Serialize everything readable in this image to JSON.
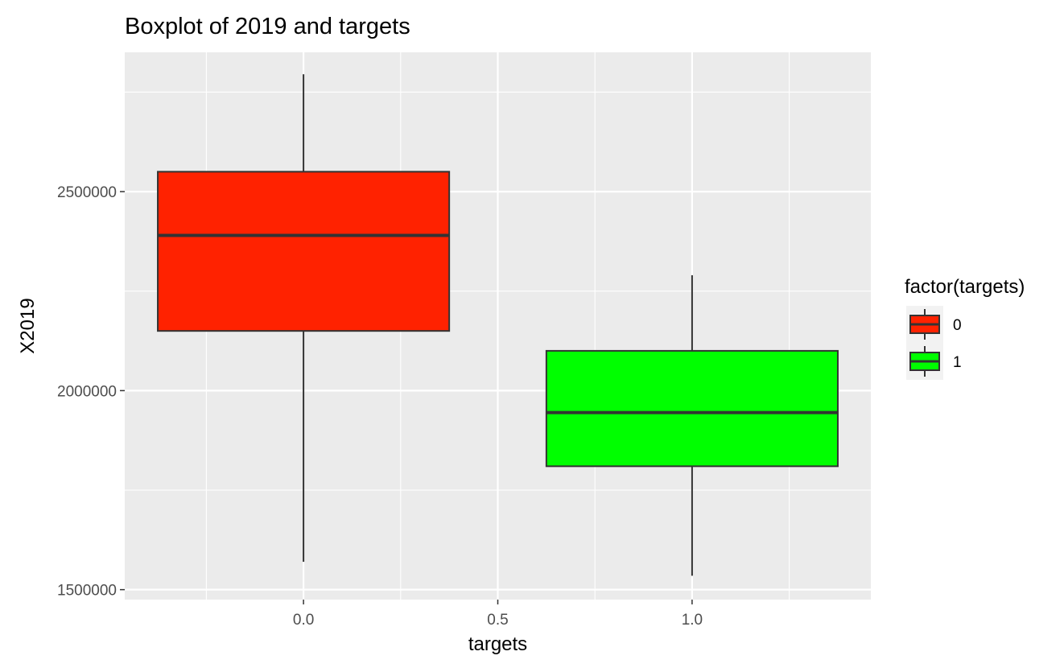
{
  "chart_data": {
    "type": "boxplot",
    "title": "Boxplot of 2019 and targets",
    "xlabel": "targets",
    "ylabel": "X2019",
    "xlim": [
      -0.46,
      1.46
    ],
    "ylim": [
      1475000,
      2850000
    ],
    "x_ticks": [
      0.0,
      0.5,
      1.0
    ],
    "x_tick_labels": [
      "0.0",
      "0.5",
      "1.0"
    ],
    "y_ticks": [
      1500000,
      2000000,
      2500000
    ],
    "y_tick_labels": [
      "1500000",
      "2000000",
      "2500000"
    ],
    "grid": true,
    "legend": {
      "title": "factor(targets)",
      "position": "right"
    },
    "series": [
      {
        "name": "0",
        "x": 0,
        "box_width": 0.75,
        "whisker_low": 1570000,
        "q1": 2150000,
        "median": 2390000,
        "q3": 2550000,
        "whisker_high": 2795000,
        "color": "#ff2200"
      },
      {
        "name": "1",
        "x": 1,
        "box_width": 0.75,
        "whisker_low": 1535000,
        "q1": 1810000,
        "median": 1945000,
        "q3": 2100000,
        "whisker_high": 2290000,
        "color": "#00ff00"
      }
    ]
  }
}
